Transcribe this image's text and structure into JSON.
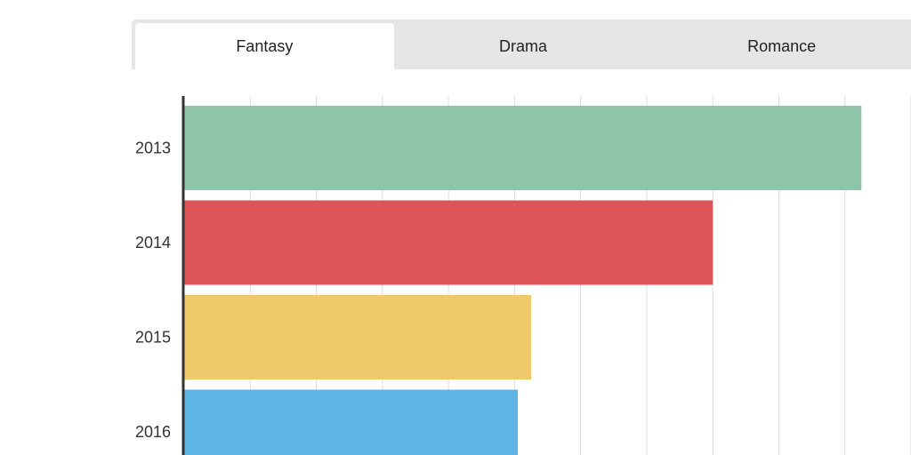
{
  "tabs": [
    {
      "label": "Fantasy",
      "active": true
    },
    {
      "label": "Drama",
      "active": false
    },
    {
      "label": "Romance",
      "active": false
    }
  ],
  "chart_data": {
    "type": "bar",
    "orientation": "horizontal",
    "categories": [
      "2013",
      "2014",
      "2015",
      "2016"
    ],
    "values": [
      205,
      160,
      105,
      101
    ],
    "colors": [
      "#8fc4a9",
      "#dd5456",
      "#eec96a",
      "#5db5e5"
    ],
    "xlim": [
      0,
      220
    ],
    "grid": true,
    "title": "",
    "xlabel": "",
    "ylabel": ""
  }
}
